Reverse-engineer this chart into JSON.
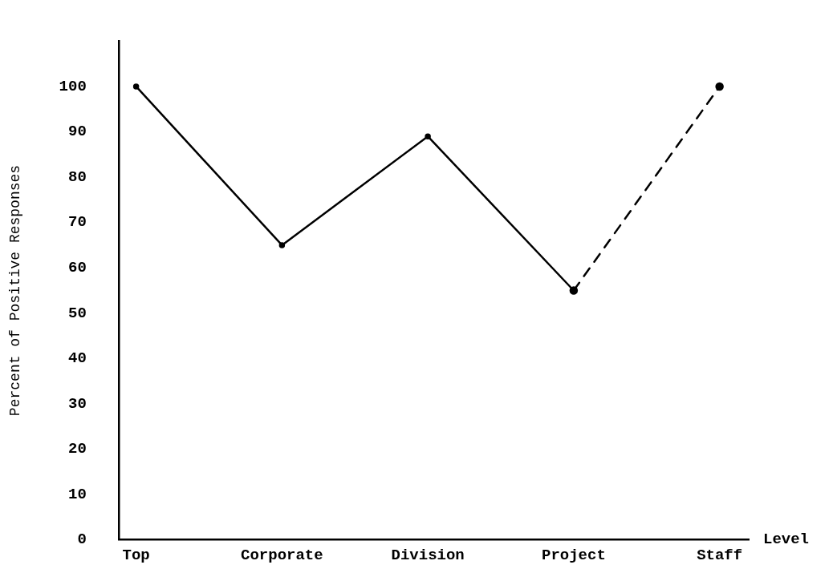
{
  "chart_data": {
    "type": "line",
    "xlabel": "Level",
    "ylabel": "Percent of Positive Responses",
    "categories": [
      "Top",
      "Corporate",
      "Division",
      "Project",
      "Staff"
    ],
    "series": [
      {
        "color": "#000000",
        "values": [
          100,
          65,
          89,
          55,
          null
        ],
        "line_style": "solid"
      },
      {
        "color": "#000000",
        "values": [
          null,
          null,
          null,
          55,
          100
        ],
        "line_style": "dashed"
      }
    ],
    "ylim": [
      0,
      110
    ],
    "yticks": [
      0,
      10,
      20,
      30,
      40,
      50,
      60,
      70,
      80,
      90,
      100
    ],
    "grid": false,
    "legend": false,
    "marker": "circle"
  }
}
